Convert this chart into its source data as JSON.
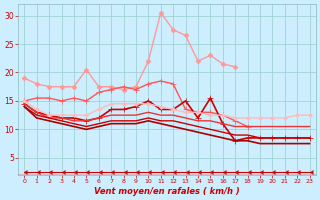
{
  "x": [
    0,
    1,
    2,
    3,
    4,
    5,
    6,
    7,
    8,
    9,
    10,
    11,
    12,
    13,
    14,
    15,
    16,
    17,
    18,
    19,
    20,
    21,
    22,
    23
  ],
  "lines": [
    {
      "y": [
        19.0,
        18.0,
        17.5,
        17.5,
        17.5,
        20.5,
        17.5,
        17.5,
        17.0,
        17.5,
        22.0,
        30.5,
        27.5,
        26.5,
        22.0,
        23.0,
        21.5,
        21.0,
        null,
        null,
        null,
        null,
        null,
        null
      ],
      "color": "#ff9999",
      "lw": 1.0,
      "marker": "D",
      "ms": 2.5,
      "mec": "#ff9999"
    },
    {
      "y": [
        15.0,
        15.5,
        15.5,
        15.0,
        15.5,
        15.0,
        16.5,
        17.0,
        17.5,
        17.0,
        18.0,
        18.5,
        18.0,
        13.5,
        13.0,
        13.0,
        12.5,
        11.5,
        10.5,
        null,
        null,
        null,
        null,
        null
      ],
      "color": "#ff5555",
      "lw": 1.0,
      "marker": "+",
      "ms": 4,
      "mec": "#ff5555"
    },
    {
      "y": [
        14.5,
        13.0,
        12.5,
        12.0,
        12.0,
        11.5,
        12.0,
        13.5,
        13.5,
        14.0,
        15.0,
        13.5,
        13.5,
        15.0,
        12.0,
        15.5,
        11.0,
        8.0,
        8.5,
        8.5,
        8.5,
        8.5,
        8.5,
        8.5
      ],
      "color": "#cc0000",
      "lw": 1.2,
      "marker": "+",
      "ms": 4,
      "mec": "#cc0000"
    },
    {
      "y": [
        15.0,
        13.5,
        12.5,
        12.5,
        12.5,
        12.5,
        13.5,
        14.5,
        14.5,
        14.5,
        14.5,
        14.0,
        13.5,
        13.0,
        13.0,
        12.5,
        12.5,
        12.0,
        12.0,
        12.0,
        12.0,
        12.0,
        12.5,
        12.5
      ],
      "color": "#ffbbbb",
      "lw": 1.0,
      "marker": "D",
      "ms": 2.0,
      "mec": "#ffbbbb"
    },
    {
      "y": [
        14.5,
        13.0,
        12.0,
        12.0,
        11.5,
        11.5,
        12.0,
        12.5,
        12.5,
        12.5,
        13.0,
        12.5,
        12.5,
        12.0,
        11.5,
        11.5,
        11.0,
        10.5,
        10.5,
        10.5,
        10.5,
        10.5,
        10.5,
        10.5
      ],
      "color": "#ee3333",
      "lw": 1.0,
      "marker": null,
      "ms": 0,
      "mec": "#ee3333"
    },
    {
      "y": [
        14.0,
        12.5,
        12.0,
        11.5,
        11.0,
        10.5,
        11.0,
        11.5,
        11.5,
        11.5,
        12.0,
        11.5,
        11.5,
        11.0,
        10.5,
        10.0,
        9.5,
        9.0,
        9.0,
        8.5,
        8.5,
        8.5,
        8.5,
        8.5
      ],
      "color": "#cc0000",
      "lw": 1.0,
      "marker": null,
      "ms": 0,
      "mec": "#cc0000"
    },
    {
      "y": [
        14.0,
        12.0,
        11.5,
        11.0,
        10.5,
        10.0,
        10.5,
        11.0,
        11.0,
        11.0,
        11.5,
        11.0,
        10.5,
        10.0,
        9.5,
        9.0,
        8.5,
        8.0,
        8.0,
        7.5,
        7.5,
        7.5,
        7.5,
        7.5
      ],
      "color": "#aa0000",
      "lw": 1.2,
      "marker": null,
      "ms": 0,
      "mec": "#aa0000"
    },
    {
      "y": [
        2.5,
        2.5,
        2.5,
        2.5,
        2.5,
        2.5,
        2.5,
        2.5,
        2.5,
        2.5,
        2.5,
        2.5,
        2.5,
        2.5,
        2.5,
        2.5,
        2.5,
        2.5,
        2.5,
        2.5,
        2.5,
        2.5,
        2.5,
        2.5
      ],
      "color": "#cc0000",
      "lw": 0.8,
      "marker": 4,
      "ms": 3,
      "mec": "#cc0000"
    }
  ],
  "xlabel": "Vent moyen/en rafales ( km/h )",
  "xlim": [
    -0.5,
    23.5
  ],
  "ylim": [
    2,
    32
  ],
  "yticks": [
    5,
    10,
    15,
    20,
    25,
    30
  ],
  "xticks": [
    0,
    1,
    2,
    3,
    4,
    5,
    6,
    7,
    8,
    9,
    10,
    11,
    12,
    13,
    14,
    15,
    16,
    17,
    18,
    19,
    20,
    21,
    22,
    23
  ],
  "bg_color": "#cceeff",
  "grid_color": "#99cccc",
  "xlabel_color": "#cc0000",
  "tick_color": "#cc0000"
}
